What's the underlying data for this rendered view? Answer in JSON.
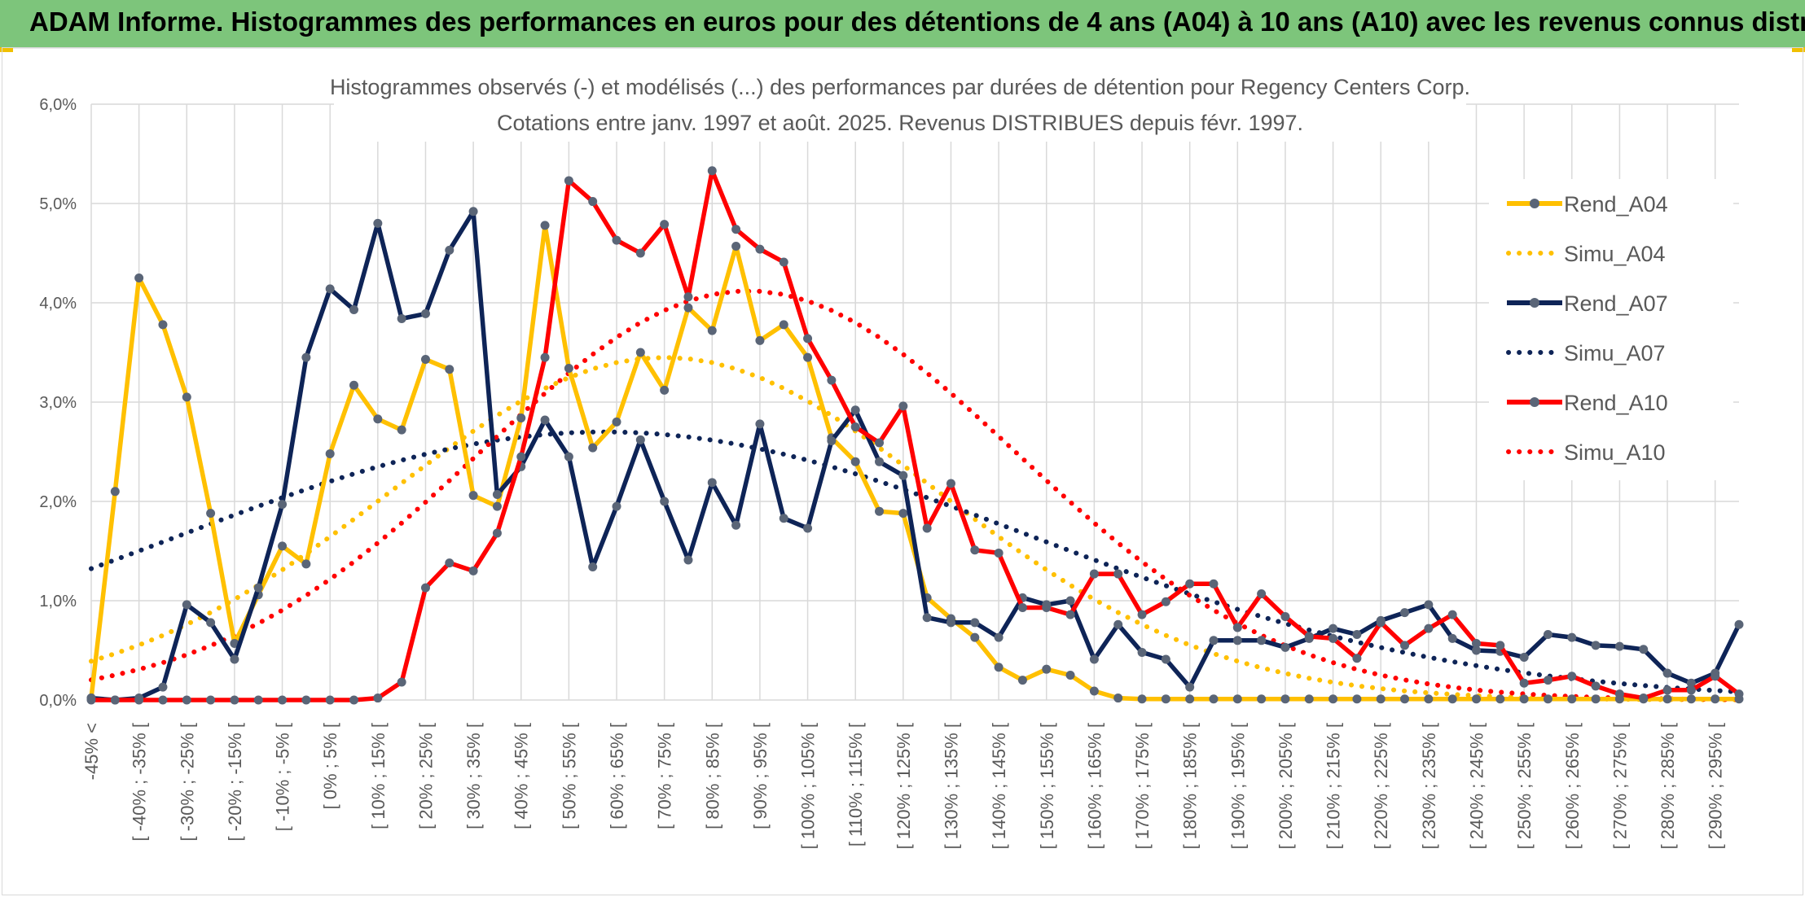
{
  "banner": {
    "title": "ADAM Informe. Histogrammes des performances en euros pour des détentions de 4 ans (A04) à 10 ans (A10) avec les revenus connus distribués"
  },
  "colors": {
    "banner_bg": "#7dc57b",
    "gold": "#ffc000",
    "navy": "#0e2457",
    "red": "#ff0000",
    "grid": "#d9d9d9",
    "text": "#595959"
  },
  "chart_data": {
    "type": "line",
    "title": [
      "Histogrammes observés (-) et modélisés (...) des performances par durées de détention pour Regency Centers Corp.",
      "Cotations entre janv. 1997 et août. 2025. Revenus DISTRIBUES depuis févr. 1997."
    ],
    "xlabel": "",
    "ylabel": "",
    "ylim": [
      0,
      6
    ],
    "y_ticks": [
      "0,0%",
      "1,0%",
      "2,0%",
      "3,0%",
      "4,0%",
      "5,0%",
      "6,0%"
    ],
    "x_tick_labels": [
      "-45% <",
      "[ -40% ; -35% [",
      "[ -30% ; -25% [",
      "[ -20% ; -15% [",
      "[ -10% ; -5% [",
      "[ 0% ; 5% [",
      "[ 10% ; 15% [",
      "[ 20% ; 25% [",
      "[ 30% ; 35% [",
      "[ 40% ; 45% [",
      "[ 50% ; 55% [",
      "[ 60% ; 65% [",
      "[ 70% ; 75% [",
      "[ 80% ; 85% [",
      "[ 90% ; 95% [",
      "[ 100% ; 105% [",
      "[ 110% ; 115% [",
      "[ 120% ; 125% [",
      "[ 130% ; 135% [",
      "[ 140% ; 145% [",
      "[ 150% ; 155% [",
      "[ 160% ; 165% [",
      "[ 170% ; 175% [",
      "[ 180% ; 185% [",
      "[ 190% ; 195% [",
      "[ 200% ; 205% [",
      "[ 210% ; 215% [",
      "[ 220% ; 225% [",
      "[ 230% ; 235% [",
      "[ 240% ; 245% [",
      "[ 250% ; 255% [",
      "[ 260% ; 265% [",
      "[ 270% ; 275% [",
      "[ 280% ; 285% [",
      "[ 290% ; 295% ["
    ],
    "categories_count": 70,
    "grid": true,
    "legend_position": "right",
    "series": [
      {
        "name": "Rend_A04",
        "style": "solid",
        "color": "#ffc000",
        "values": [
          0.02,
          2.1,
          4.25,
          3.78,
          3.05,
          1.88,
          0.57,
          1.06,
          1.55,
          1.37,
          2.48,
          3.17,
          2.83,
          2.72,
          3.43,
          3.33,
          2.06,
          1.95,
          2.84,
          4.78,
          3.34,
          2.54,
          2.8,
          3.5,
          3.12,
          3.95,
          3.72,
          4.57,
          3.62,
          3.78,
          3.45,
          2.64,
          2.4,
          1.9,
          1.88,
          1.03,
          0.82,
          0.63,
          0.33,
          0.2,
          0.31,
          0.25,
          0.09,
          0.02,
          0.01,
          0.01,
          0.01,
          0.01,
          0.01,
          0.01,
          0.01,
          0.01,
          0.01,
          0.01,
          0.01,
          0.01,
          0.01,
          0.01,
          0.01,
          0.01,
          0.01,
          0.01,
          0.01,
          0.01,
          0.01,
          0.01,
          0.01,
          0.01,
          0.01,
          0.01
        ]
      },
      {
        "name": "Simu_A04",
        "style": "dotted",
        "color": "#ffc000",
        "mean": 24,
        "sd": 11.5,
        "peak": 3.45
      },
      {
        "name": "Rend_A07",
        "style": "solid",
        "color": "#0e2457",
        "values": [
          0.02,
          0.0,
          0.02,
          0.13,
          0.96,
          0.78,
          0.41,
          1.13,
          1.97,
          3.45,
          4.14,
          3.93,
          4.8,
          3.84,
          3.89,
          4.53,
          4.92,
          2.07,
          2.35,
          2.82,
          2.45,
          1.34,
          1.95,
          2.62,
          2.0,
          1.41,
          2.19,
          1.76,
          2.78,
          1.83,
          1.73,
          2.61,
          2.92,
          2.4,
          2.26,
          0.83,
          0.78,
          0.78,
          0.63,
          1.03,
          0.96,
          1.0,
          0.41,
          0.76,
          0.48,
          0.41,
          0.13,
          0.6,
          0.6,
          0.6,
          0.53,
          0.62,
          0.72,
          0.66,
          0.8,
          0.88,
          0.96,
          0.62,
          0.5,
          0.49,
          0.43,
          0.66,
          0.63,
          0.55,
          0.54,
          0.51,
          0.27,
          0.17,
          0.27,
          0.76
        ]
      },
      {
        "name": "Simu_A07",
        "style": "dotted",
        "color": "#0e2457",
        "mean": 21.5,
        "sd": 18,
        "peak": 2.7
      },
      {
        "name": "Rend_A10",
        "style": "solid",
        "color": "#ff0000",
        "values": [
          0,
          0,
          0,
          0,
          0,
          0,
          0,
          0,
          0,
          0,
          0,
          0,
          0.02,
          0.18,
          1.13,
          1.38,
          1.3,
          1.68,
          2.45,
          3.45,
          5.23,
          5.02,
          4.63,
          4.5,
          4.79,
          4.06,
          5.33,
          4.74,
          4.54,
          4.41,
          3.64,
          3.22,
          2.75,
          2.59,
          2.96,
          1.73,
          2.18,
          1.51,
          1.48,
          0.93,
          0.93,
          0.86,
          1.27,
          1.27,
          0.86,
          0.99,
          1.17,
          1.17,
          0.73,
          1.07,
          0.84,
          0.64,
          0.62,
          0.42,
          0.78,
          0.55,
          0.72,
          0.86,
          0.57,
          0.55,
          0.17,
          0.2,
          0.24,
          0.14,
          0.06,
          0.02,
          0.1,
          0.1,
          0.24,
          0.06
        ]
      },
      {
        "name": "Simu_A10",
        "style": "dotted",
        "color": "#ff0000",
        "mean": 27.5,
        "sd": 11.2,
        "peak": 4.12
      }
    ]
  }
}
